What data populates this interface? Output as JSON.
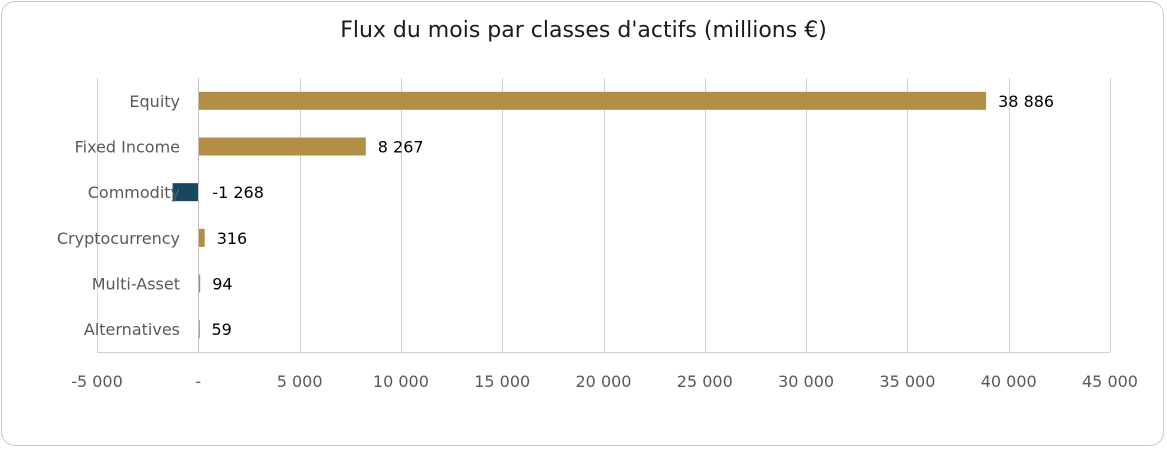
{
  "chart_data": {
    "type": "bar",
    "orientation": "horizontal",
    "title": "Flux du mois par classes d'actifs (millions €)",
    "categories": [
      "Equity",
      "Fixed Income",
      "Commodity",
      "Cryptocurrency",
      "Multi-Asset",
      "Alternatives"
    ],
    "values": [
      38886,
      8267,
      -1268,
      316,
      94,
      59
    ],
    "data_labels": [
      "38 886",
      "8 267",
      "-1 268",
      "316",
      "94",
      "59"
    ],
    "xlim": [
      -5000,
      45000
    ],
    "xticks": [
      -5000,
      0,
      5000,
      10000,
      15000,
      20000,
      25000,
      30000,
      35000,
      40000,
      45000
    ],
    "xtick_labels": [
      "-5 000",
      "-",
      "5 000",
      "10 000",
      "15 000",
      "20 000",
      "25 000",
      "30 000",
      "35 000",
      "40 000",
      "45 000"
    ],
    "grid": true,
    "legend": "none",
    "colors": {
      "positive": "#B38E45",
      "negative": "#174861",
      "grid": "#D0D0D0"
    }
  }
}
